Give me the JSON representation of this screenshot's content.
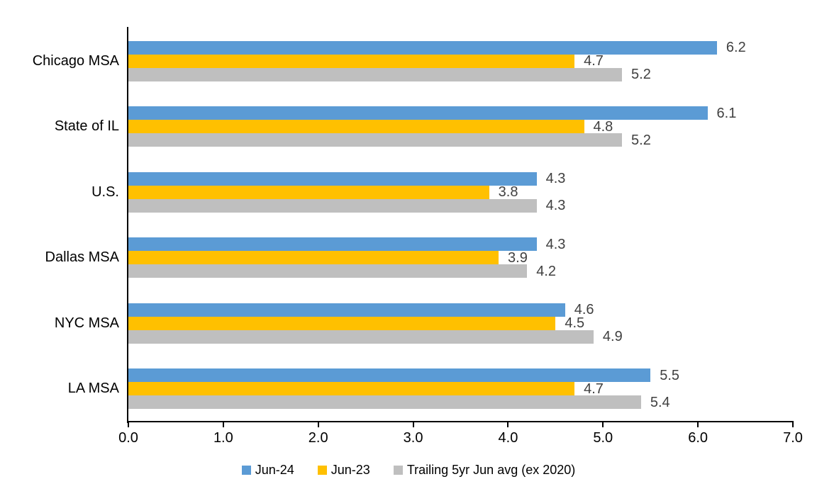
{
  "chart_data": {
    "type": "bar",
    "orientation": "horizontal",
    "title": "",
    "xlabel": "",
    "ylabel": "",
    "categories": [
      "Chicago MSA",
      "State of IL",
      "U.S.",
      "Dallas MSA",
      "NYC MSA",
      "LA MSA"
    ],
    "series": [
      {
        "name": "Jun-24",
        "color": "#5B9BD5",
        "values": [
          6.2,
          6.1,
          4.3,
          4.3,
          4.6,
          5.5
        ]
      },
      {
        "name": "Jun-23",
        "color": "#FFC000",
        "values": [
          4.7,
          4.8,
          3.8,
          3.9,
          4.5,
          4.7
        ]
      },
      {
        "name": "Trailing 5yr Jun avg (ex 2020)",
        "color": "#BFBFBF",
        "values": [
          5.2,
          5.2,
          4.3,
          4.2,
          4.9,
          5.4
        ]
      }
    ],
    "xlim": [
      0,
      7
    ],
    "x_ticks": [
      "0.0",
      "1.0",
      "2.0",
      "3.0",
      "4.0",
      "5.0",
      "6.0",
      "7.0"
    ],
    "data_labels": true,
    "data_label_decimals": 1,
    "grid": false,
    "legend_position": "bottom"
  },
  "colors": {
    "axis": "#000000",
    "data_label": "#404040",
    "background": "#FFFFFF"
  }
}
